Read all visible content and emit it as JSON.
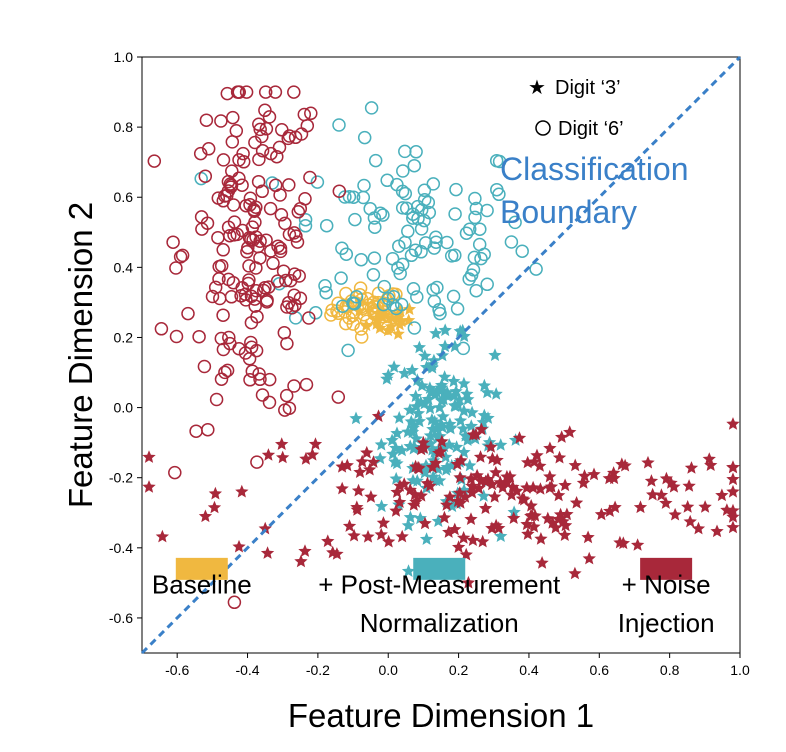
{
  "chart_data": {
    "type": "scatter",
    "xlabel": "Feature Dimension 1",
    "ylabel": "Feature Dimension 2",
    "xlim": [
      -0.7,
      1.0
    ],
    "ylim": [
      -0.7,
      1.0
    ],
    "x_ticks": [
      "-0.6",
      "-0.4",
      "-0.2",
      "0.0",
      "0.2",
      "0.4",
      "0.6",
      "0.8",
      "1.0"
    ],
    "y_ticks": [
      "-0.6",
      "-0.4",
      "-0.2",
      "0.0",
      "0.2",
      "0.4",
      "0.6",
      "0.8",
      "1.0"
    ],
    "grid": false,
    "legend": {
      "placement": "top-right",
      "entries": [
        {
          "label": "Digit ‘3’",
          "marker": "star"
        },
        {
          "label": "Digit ‘6’",
          "marker": "circle"
        }
      ]
    },
    "boundary": {
      "label_line1": "Classification",
      "label_line2": "Boundary",
      "line": [
        [
          -0.7,
          -0.7
        ],
        [
          1.0,
          1.0
        ]
      ],
      "color": "#3a80c8"
    },
    "groups": [
      {
        "label_line1": "Baseline",
        "label_line2": "",
        "color": "#f0b840",
        "circle_center": [
          -0.06,
          0.28
        ],
        "circle_spread": [
          0.05,
          0.03
        ],
        "circle_count": 45,
        "star_center": [
          0.0,
          0.25
        ],
        "star_spread": [
          0.04,
          0.02
        ],
        "star_count": 20,
        "swatch_x": -0.53
      },
      {
        "label_line1": "+ Post-Measurement",
        "label_line2": "Normalization",
        "color": "#4ab0bc",
        "circle_center": [
          0.06,
          0.48
        ],
        "circle_spread": [
          0.17,
          0.15
        ],
        "circle_count": 120,
        "star_center": [
          0.14,
          -0.06
        ],
        "star_spread": [
          0.08,
          0.12
        ],
        "star_count": 160,
        "swatch_x": 0.145
      },
      {
        "label_line1": "+ Noise",
        "label_line2": "Injection",
        "color": "#a8283a",
        "circle_center": [
          -0.38,
          0.45
        ],
        "circle_spread": [
          0.1,
          0.25
        ],
        "circle_count": 190,
        "star_center": [
          0.3,
          -0.25
        ],
        "star_spread": [
          0.38,
          0.1
        ],
        "star_count": 200,
        "swatch_x": 0.79
      }
    ],
    "swatch_y": -0.46,
    "label_y1": -0.53,
    "label_y2": -0.64
  }
}
